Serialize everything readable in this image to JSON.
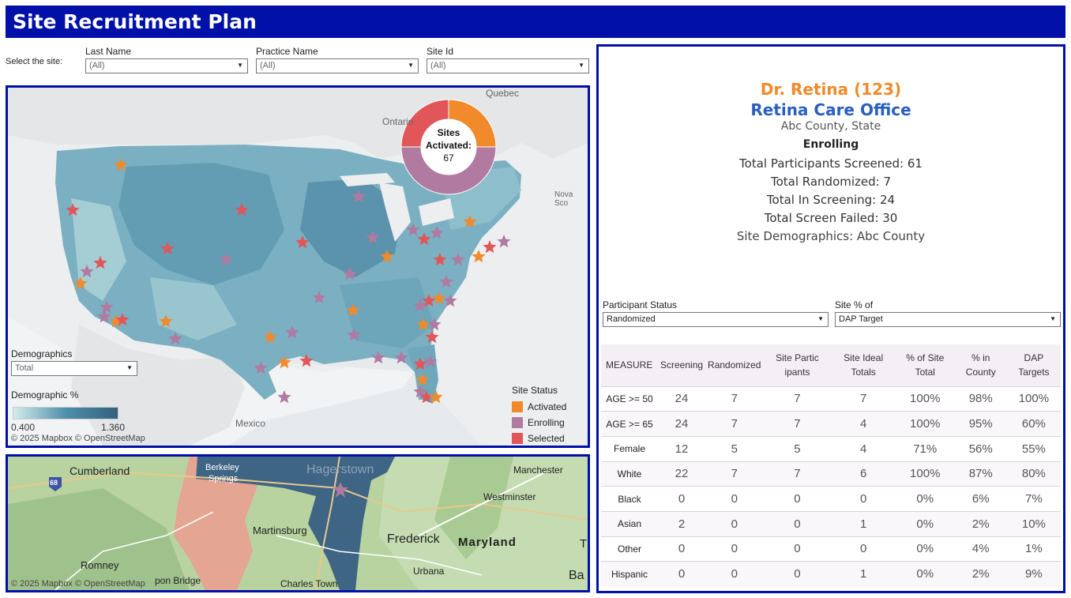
{
  "header": {
    "title": "Site Recruitment Plan"
  },
  "filters": {
    "select_label": "Select the site:",
    "last_name": {
      "label": "Last Name",
      "value": "(All)"
    },
    "practice_name": {
      "label": "Practice Name",
      "value": "(All)"
    },
    "site_id": {
      "label": "Site Id",
      "value": "(All)"
    }
  },
  "us_map": {
    "donut": {
      "label_line1": "Sites",
      "label_line2": "Activated:",
      "value": "67",
      "segments": [
        {
          "status": "Activated",
          "fraction": 0.25
        },
        {
          "status": "Enrolling",
          "fraction": 0.5
        },
        {
          "status": "Selected",
          "fraction": 0.25
        }
      ]
    },
    "place_labels": {
      "quebec": "Quebec",
      "ontario": "Ontario",
      "nova_scotia": "Nova Sco",
      "mexico": "Mexico"
    },
    "demographics_filter": {
      "label": "Demographics",
      "value": "Total"
    },
    "demographic_pct": {
      "label": "Demographic %",
      "min": "0.400",
      "max": "1.360"
    },
    "attribution": "© 2025 Mapbox  © OpenStreetMap",
    "legend": {
      "title": "Site Status",
      "items": [
        {
          "label": "Activated",
          "color": "#f08a2a"
        },
        {
          "label": "Enrolling",
          "color": "#b07aa1"
        },
        {
          "label": "Selected",
          "color": "#e15759"
        }
      ]
    }
  },
  "local_map": {
    "labels": {
      "cumberland": "Cumberland",
      "berkeley_springs_1": "Berkeley",
      "berkeley_springs_2": "Springs",
      "hagerstown": "Hagerstown",
      "manchester": "Manchester",
      "westminster": "Westminster",
      "martinsburg": "Martinsburg",
      "frederick": "Frederick",
      "maryland": "Maryland",
      "romney": "Romney",
      "urbana": "Urbana",
      "charles_town": "Charles Town",
      "capon_bridge": "pon Bridge",
      "ba": "Ba",
      "t": "T",
      "route": "68"
    },
    "attribution": "© 2025 Mapbox  © OpenStreetMap"
  },
  "site": {
    "name": "Dr. Retina (123)",
    "office": "Retina Care Office",
    "county": "Abc County, State",
    "status": "Enrolling",
    "screened": "Total Participants Screened: 61",
    "randomized": "Total Randomized: 7",
    "in_screening": "Total In Screening: 24",
    "screen_failed": "Total Screen Failed: 30",
    "demographics": "Site Demographics:  Abc County"
  },
  "participant_filters": {
    "status": {
      "label": "Participant Status",
      "value": "Randomized"
    },
    "pct_of": {
      "label": "Site % of",
      "value": "DAP Target"
    }
  },
  "measures_table": {
    "headers": [
      "MEASURE",
      "Screening",
      "Randomized",
      "Site Partic ipants",
      "Site Ideal Totals",
      "% of Site Total",
      "% in County",
      "DAP Targets"
    ],
    "rows": [
      [
        "AGE >= 50",
        "24",
        "7",
        "7",
        "7",
        "100%",
        "98%",
        "100%"
      ],
      [
        "AGE >= 65",
        "24",
        "7",
        "7",
        "4",
        "100%",
        "95%",
        "60%"
      ],
      [
        "Female",
        "12",
        "5",
        "5",
        "4",
        "71%",
        "56%",
        "55%"
      ],
      [
        "White",
        "22",
        "7",
        "7",
        "6",
        "100%",
        "87%",
        "80%"
      ],
      [
        "Black",
        "0",
        "0",
        "0",
        "0",
        "0%",
        "6%",
        "7%"
      ],
      [
        "Asian",
        "2",
        "0",
        "0",
        "1",
        "0%",
        "2%",
        "10%"
      ],
      [
        "Other",
        "0",
        "0",
        "0",
        "0",
        "0%",
        "4%",
        "1%"
      ],
      [
        "Hispanic",
        "0",
        "0",
        "0",
        "1",
        "0%",
        "2%",
        "9%"
      ]
    ]
  }
}
